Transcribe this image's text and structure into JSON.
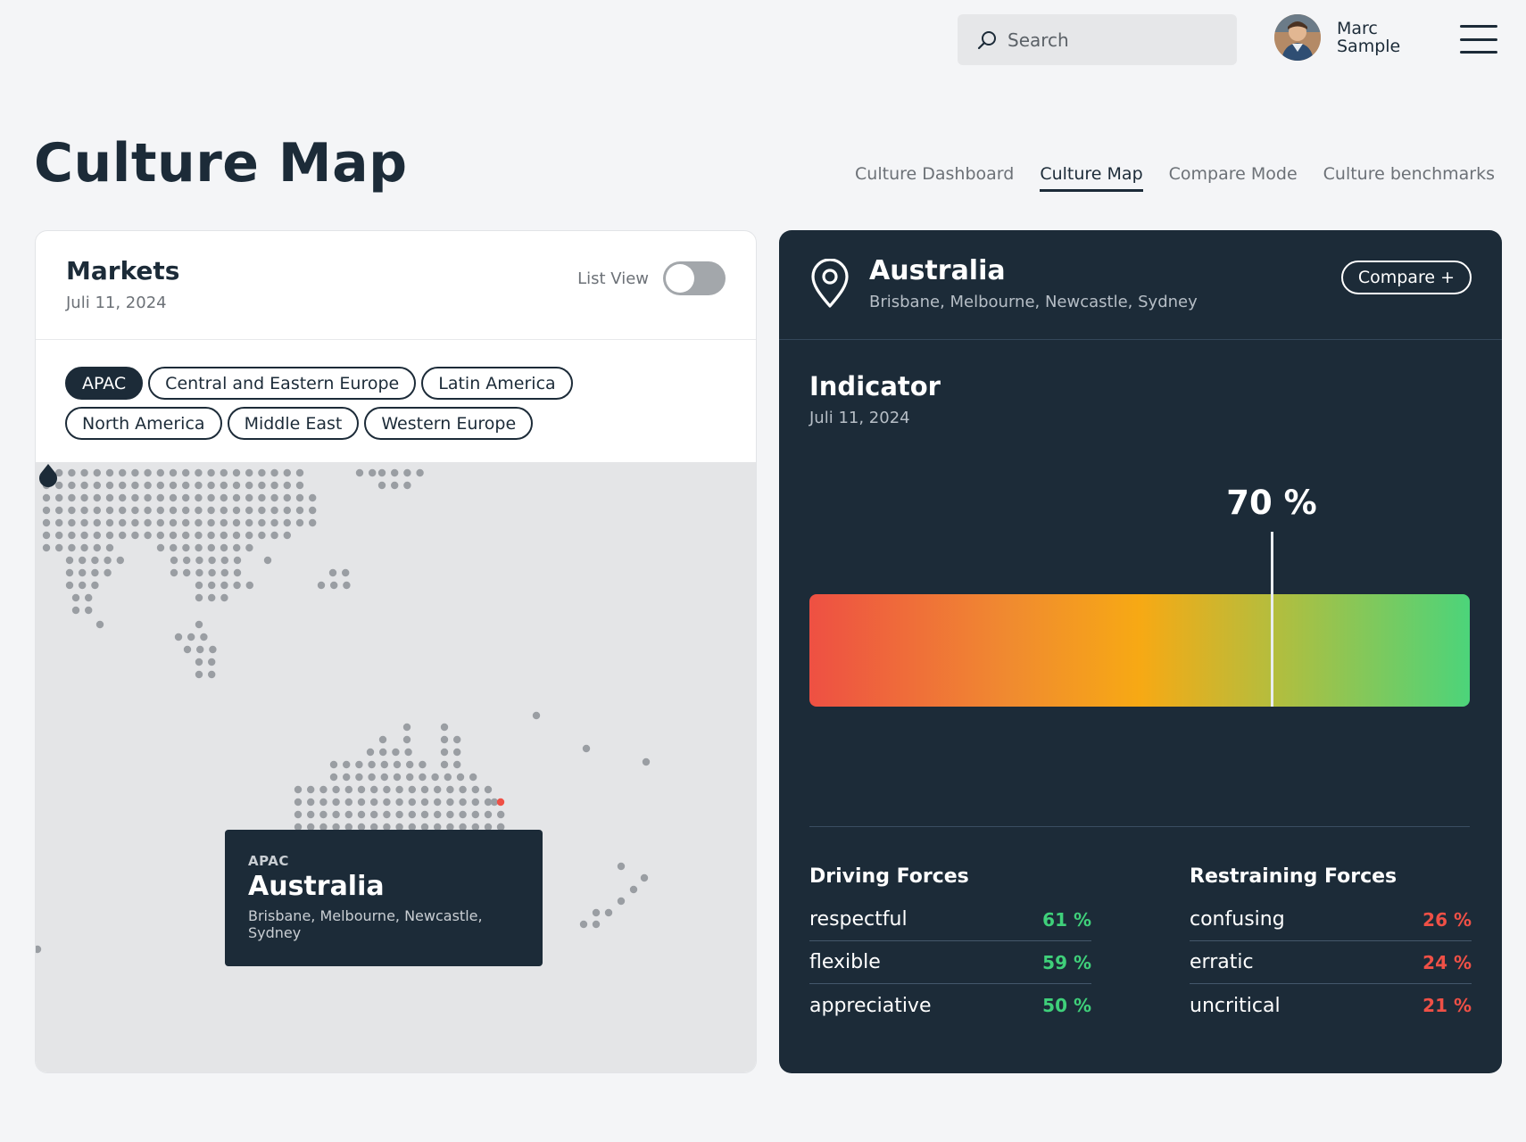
{
  "header": {
    "search_placeholder": "Search",
    "user_name": "Marc Sample"
  },
  "page": {
    "title": "Culture Map",
    "tabs": [
      {
        "label": "Culture Dashboard",
        "active": false
      },
      {
        "label": "Culture Map",
        "active": true
      },
      {
        "label": "Compare Mode",
        "active": false
      },
      {
        "label": "Culture benchmarks",
        "active": false
      }
    ]
  },
  "markets": {
    "title": "Markets",
    "date": "Juli 11, 2024",
    "list_view_label": "List View",
    "list_view_on": false,
    "regions": [
      {
        "label": "APAC",
        "active": true
      },
      {
        "label": "Central and Eastern Europe",
        "active": false
      },
      {
        "label": "Latin America",
        "active": false
      },
      {
        "label": "North America",
        "active": false
      },
      {
        "label": "Middle East",
        "active": false
      },
      {
        "label": "Western Europe",
        "active": false
      }
    ],
    "tooltip": {
      "region": "APAC",
      "country": "Australia",
      "cities": "Brisbane, Melbourne, Newcastle, Sydney"
    }
  },
  "detail": {
    "country": "Australia",
    "cities": "Brisbane, Melbourne, Newcastle, Sydney",
    "compare_label": "Compare +",
    "indicator_title": "Indicator",
    "indicator_date": "Juli 11, 2024",
    "indicator_value": 70,
    "indicator_value_label": "70 %",
    "driving_title": "Driving Forces",
    "restraining_title": "Restraining Forces",
    "driving": [
      {
        "name": "respectful",
        "value": "61 %"
      },
      {
        "name": "flexible",
        "value": "59 %"
      },
      {
        "name": "appreciative",
        "value": "50 %"
      }
    ],
    "restraining": [
      {
        "name": "confusing",
        "value": "26 %"
      },
      {
        "name": "erratic",
        "value": "24 %"
      },
      {
        "name": "uncritical",
        "value": "21 %"
      }
    ]
  },
  "colors": {
    "navy": "#1c2b38",
    "positive": "#3fd07a",
    "negative": "#ef5046",
    "map_dot": "#9a9ea3",
    "city_dot": "#ef5046"
  }
}
